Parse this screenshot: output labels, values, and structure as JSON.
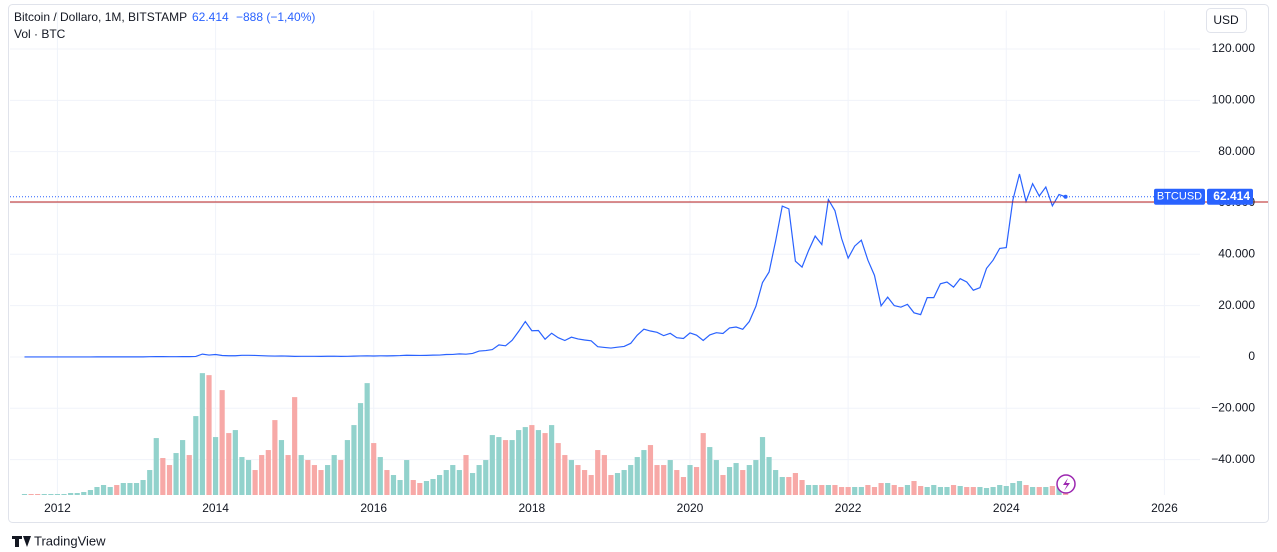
{
  "chart_data": {
    "type": "line",
    "header": {
      "price": "62.414",
      "change": "−888 (−1,40%)"
    },
    "currency_button": "USD",
    "brand": "TradingView",
    "price_marker": {
      "name": "BTCUSD",
      "value": 62414,
      "label": "62.414",
      "color": "#2962ff"
    },
    "reference_line": {
      "value": 60400,
      "color": "#b71c1c"
    },
    "grid": true,
    "xlim": [
      2011.4,
      2026.45
    ],
    "xticks": [
      2012,
      2014,
      2016,
      2018,
      2020,
      2022,
      2024,
      2026
    ],
    "ylim": [
      -53800,
      135000
    ],
    "yticks": [
      {
        "value": 120000,
        "label": "120.000"
      },
      {
        "value": 100000,
        "label": "100.000"
      },
      {
        "value": 80000,
        "label": "80.000"
      },
      {
        "value": 60000,
        "label": "60.000"
      },
      {
        "value": 40000,
        "label": "40.000"
      },
      {
        "value": 20000,
        "label": "20.000"
      },
      0,
      {
        "value": -20000,
        "label": "−20.000"
      },
      {
        "value": -40000,
        "label": "−40.000"
      }
    ],
    "y2lim": [
      0,
      485
    ],
    "x": [
      2011.583,
      2011.667,
      2011.75,
      2011.833,
      2011.917,
      2012,
      2012.083,
      2012.167,
      2012.25,
      2012.333,
      2012.417,
      2012.5,
      2012.583,
      2012.667,
      2012.75,
      2012.833,
      2012.917,
      2013,
      2013.083,
      2013.167,
      2013.25,
      2013.333,
      2013.417,
      2013.5,
      2013.583,
      2013.667,
      2013.75,
      2013.833,
      2013.917,
      2014,
      2014.083,
      2014.167,
      2014.25,
      2014.333,
      2014.417,
      2014.5,
      2014.583,
      2014.667,
      2014.75,
      2014.833,
      2014.917,
      2015,
      2015.083,
      2015.167,
      2015.25,
      2015.333,
      2015.417,
      2015.5,
      2015.583,
      2015.667,
      2015.75,
      2015.833,
      2015.917,
      2016,
      2016.083,
      2016.167,
      2016.25,
      2016.333,
      2016.417,
      2016.5,
      2016.583,
      2016.667,
      2016.75,
      2016.833,
      2016.917,
      2017,
      2017.083,
      2017.167,
      2017.25,
      2017.333,
      2017.417,
      2017.5,
      2017.583,
      2017.667,
      2017.75,
      2017.833,
      2017.917,
      2018,
      2018.083,
      2018.167,
      2018.25,
      2018.333,
      2018.417,
      2018.5,
      2018.583,
      2018.667,
      2018.75,
      2018.833,
      2018.917,
      2019,
      2019.083,
      2019.167,
      2019.25,
      2019.333,
      2019.417,
      2019.5,
      2019.583,
      2019.667,
      2019.75,
      2019.833,
      2019.917,
      2020,
      2020.083,
      2020.167,
      2020.25,
      2020.333,
      2020.417,
      2020.5,
      2020.583,
      2020.667,
      2020.75,
      2020.833,
      2020.917,
      2021,
      2021.083,
      2021.167,
      2021.25,
      2021.333,
      2021.417,
      2021.5,
      2021.583,
      2021.667,
      2021.75,
      2021.833,
      2021.917,
      2022,
      2022.083,
      2022.167,
      2022.25,
      2022.333,
      2022.417,
      2022.5,
      2022.583,
      2022.667,
      2022.75,
      2022.833,
      2022.917,
      2023,
      2023.083,
      2023.167,
      2023.25,
      2023.333,
      2023.417,
      2023.5,
      2023.583,
      2023.667,
      2023.75,
      2023.833,
      2023.917,
      2024,
      2024.083,
      2024.167,
      2024.25,
      2024.333,
      2024.417,
      2024.5,
      2024.583,
      2024.667,
      2024.75
    ],
    "series": [
      {
        "name": "Bitcoin / Dollaro, 1M, BITSTAMP",
        "color": "#2962ff",
        "values": [
          8,
          5,
          3,
          3,
          4.7,
          5,
          5,
          5,
          5,
          5,
          7,
          9,
          10,
          12,
          11,
          12,
          13,
          20,
          33,
          93,
          139,
          129,
          97,
          106,
          135,
          127,
          198,
          1100,
          730,
          940,
          550,
          450,
          450,
          630,
          640,
          590,
          480,
          390,
          340,
          380,
          320,
          220,
          250,
          245,
          235,
          230,
          265,
          285,
          230,
          237,
          315,
          380,
          430,
          370,
          435,
          415,
          450,
          530,
          670,
          620,
          575,
          610,
          700,
          740,
          960,
          970,
          1190,
          1080,
          1350,
          2300,
          2480,
          2860,
          4700,
          4340,
          6470,
          9950,
          13800,
          10200,
          10300,
          6900,
          9240,
          7500,
          6400,
          7700,
          7000,
          6600,
          6300,
          4000,
          3700,
          3450,
          3800,
          4100,
          5300,
          8500,
          10800,
          10100,
          9600,
          8300,
          9200,
          7500,
          7200,
          9350,
          8500,
          6400,
          8600,
          9450,
          9140,
          11300,
          11650,
          10780,
          13800,
          19700,
          29000,
          33100,
          45200,
          58800,
          57700,
          37300,
          35000,
          41500,
          47100,
          43800,
          61300,
          57000,
          46200,
          38500,
          43200,
          45500,
          37700,
          31800,
          19900,
          23300,
          20000,
          19400,
          20500,
          17200,
          16500,
          23100,
          23100,
          28500,
          29200,
          27200,
          30500,
          29200,
          26000,
          27000,
          34500,
          37700,
          42300,
          42600,
          61100,
          71300,
          60600,
          67500,
          62700,
          66200,
          58900,
          63300,
          62414
        ]
      },
      {
        "name": "Vol · BTC",
        "type": "bar",
        "axis": "y2",
        "up_color": "#92d2cc",
        "down_color": "#f7a9a7",
        "values": [
          1,
          1,
          1,
          1,
          1,
          1,
          1,
          2,
          2,
          3,
          5,
          8,
          10,
          8,
          10,
          12,
          12,
          12,
          15,
          25,
          57,
          37,
          30,
          42,
          55,
          40,
          79,
          122,
          120,
          58,
          105,
          62,
          65,
          38,
          35,
          25,
          40,
          45,
          75,
          55,
          40,
          98,
          40,
          35,
          30,
          25,
          30,
          40,
          35,
          55,
          70,
          92,
          112,
          52,
          38,
          25,
          20,
          15,
          35,
          15,
          12,
          14,
          16,
          20,
          25,
          30,
          25,
          40,
          22,
          30,
          35,
          60,
          58,
          55,
          55,
          65,
          68,
          70,
          65,
          62,
          70,
          52,
          40,
          35,
          30,
          25,
          20,
          45,
          40,
          20,
          22,
          25,
          30,
          38,
          45,
          50,
          30,
          30,
          35,
          25,
          18,
          30,
          28,
          62,
          48,
          35,
          20,
          28,
          32,
          25,
          30,
          35,
          58,
          38,
          25,
          18,
          18,
          22,
          15,
          10,
          10,
          10,
          10,
          10,
          8,
          8,
          8,
          8,
          10,
          8,
          12,
          12,
          10,
          8,
          10,
          14,
          9,
          8,
          10,
          8,
          8,
          10,
          9,
          8,
          8,
          8,
          7,
          8,
          10,
          9,
          12,
          14,
          10,
          8,
          8,
          8,
          9,
          8,
          10
        ]
      }
    ]
  }
}
